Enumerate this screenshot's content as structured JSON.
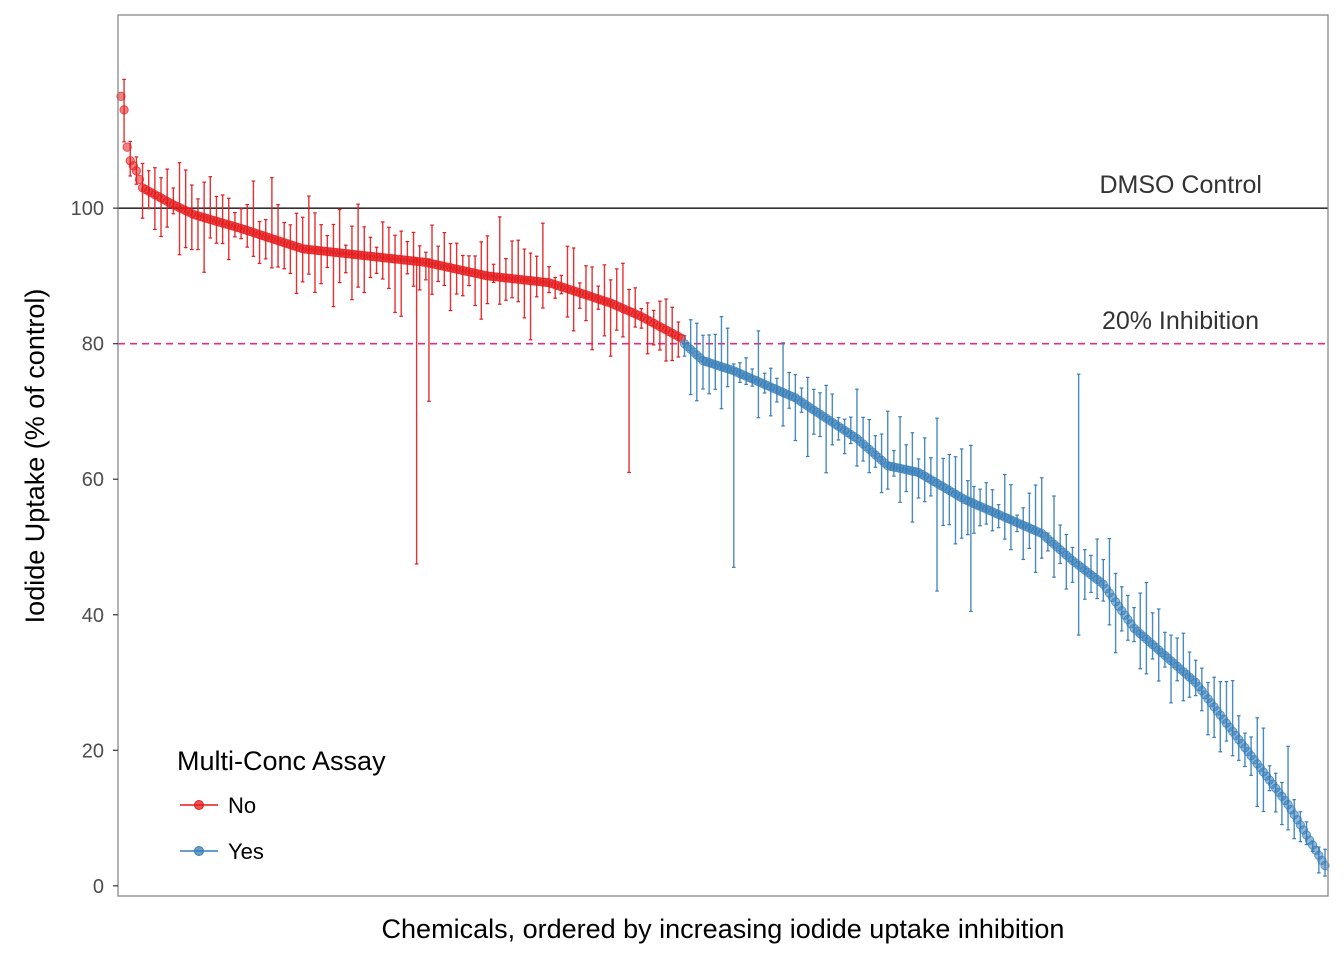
{
  "chart_data": {
    "type": "scatter",
    "xlabel": "Chemicals, ordered by increasing iodide uptake inhibition",
    "ylabel": "Iodide Uptake (% of control)",
    "ylim": [
      -1.5,
      128.5
    ],
    "yticks": [
      0,
      20,
      40,
      60,
      80,
      100
    ],
    "grid": false,
    "legend": {
      "title": "Multi-Conc Assay",
      "position": "bottom-left",
      "entries": [
        {
          "label": "No",
          "color": "#e41a1c"
        },
        {
          "label": "Yes",
          "color": "#377eb8"
        }
      ]
    },
    "reference_lines": [
      {
        "y": 100,
        "label": "DMSO Control",
        "style": "solid",
        "color": "#333333"
      },
      {
        "y": 80,
        "label": "20% Inhibition",
        "style": "dashed",
        "color": "#e7298a"
      }
    ],
    "n_points": 392,
    "no_count": 183,
    "series": [
      {
        "name": "No",
        "color": "#e41a1c",
        "profile_ranks": [
          1,
          2,
          3,
          4,
          6,
          8,
          12,
          18,
          25,
          40,
          60,
          80,
          100,
          120,
          140,
          150,
          160,
          170,
          183
        ],
        "profile_values": [
          116.5,
          114.5,
          109,
          107,
          105.5,
          103,
          102,
          100.5,
          99,
          97,
          94,
          93,
          92,
          90,
          89,
          87.5,
          86,
          84,
          80.8
        ],
        "error_spread_typical": 4,
        "notable_errors": [
          {
            "rank": 97,
            "low": 47.5,
            "high": 92.5
          },
          {
            "rank": 101,
            "low": 71.5,
            "high": 92.5
          },
          {
            "rank": 166,
            "low": 61,
            "high": 88
          }
        ]
      },
      {
        "name": "Yes",
        "color": "#377eb8",
        "profile_ranks": [
          184,
          190,
          200,
          220,
          230,
          240,
          250,
          260,
          275,
          290,
          300,
          310,
          320,
          330,
          340,
          350,
          360,
          370,
          380,
          392
        ],
        "profile_values": [
          80,
          77.5,
          76,
          72,
          69,
          66,
          62,
          61,
          57,
          54,
          52,
          48,
          44.5,
          38,
          34,
          30,
          24,
          18,
          12,
          3
        ],
        "error_spread_typical": 4,
        "notable_errors": [
          {
            "rank": 200,
            "low": 47,
            "high": 77
          },
          {
            "rank": 266,
            "low": 43.5,
            "high": 69
          },
          {
            "rank": 277,
            "low": 40.5,
            "high": 65
          },
          {
            "rank": 312,
            "low": 37,
            "high": 75.5
          },
          {
            "rank": 342,
            "low": 27,
            "high": 37
          }
        ]
      }
    ]
  }
}
